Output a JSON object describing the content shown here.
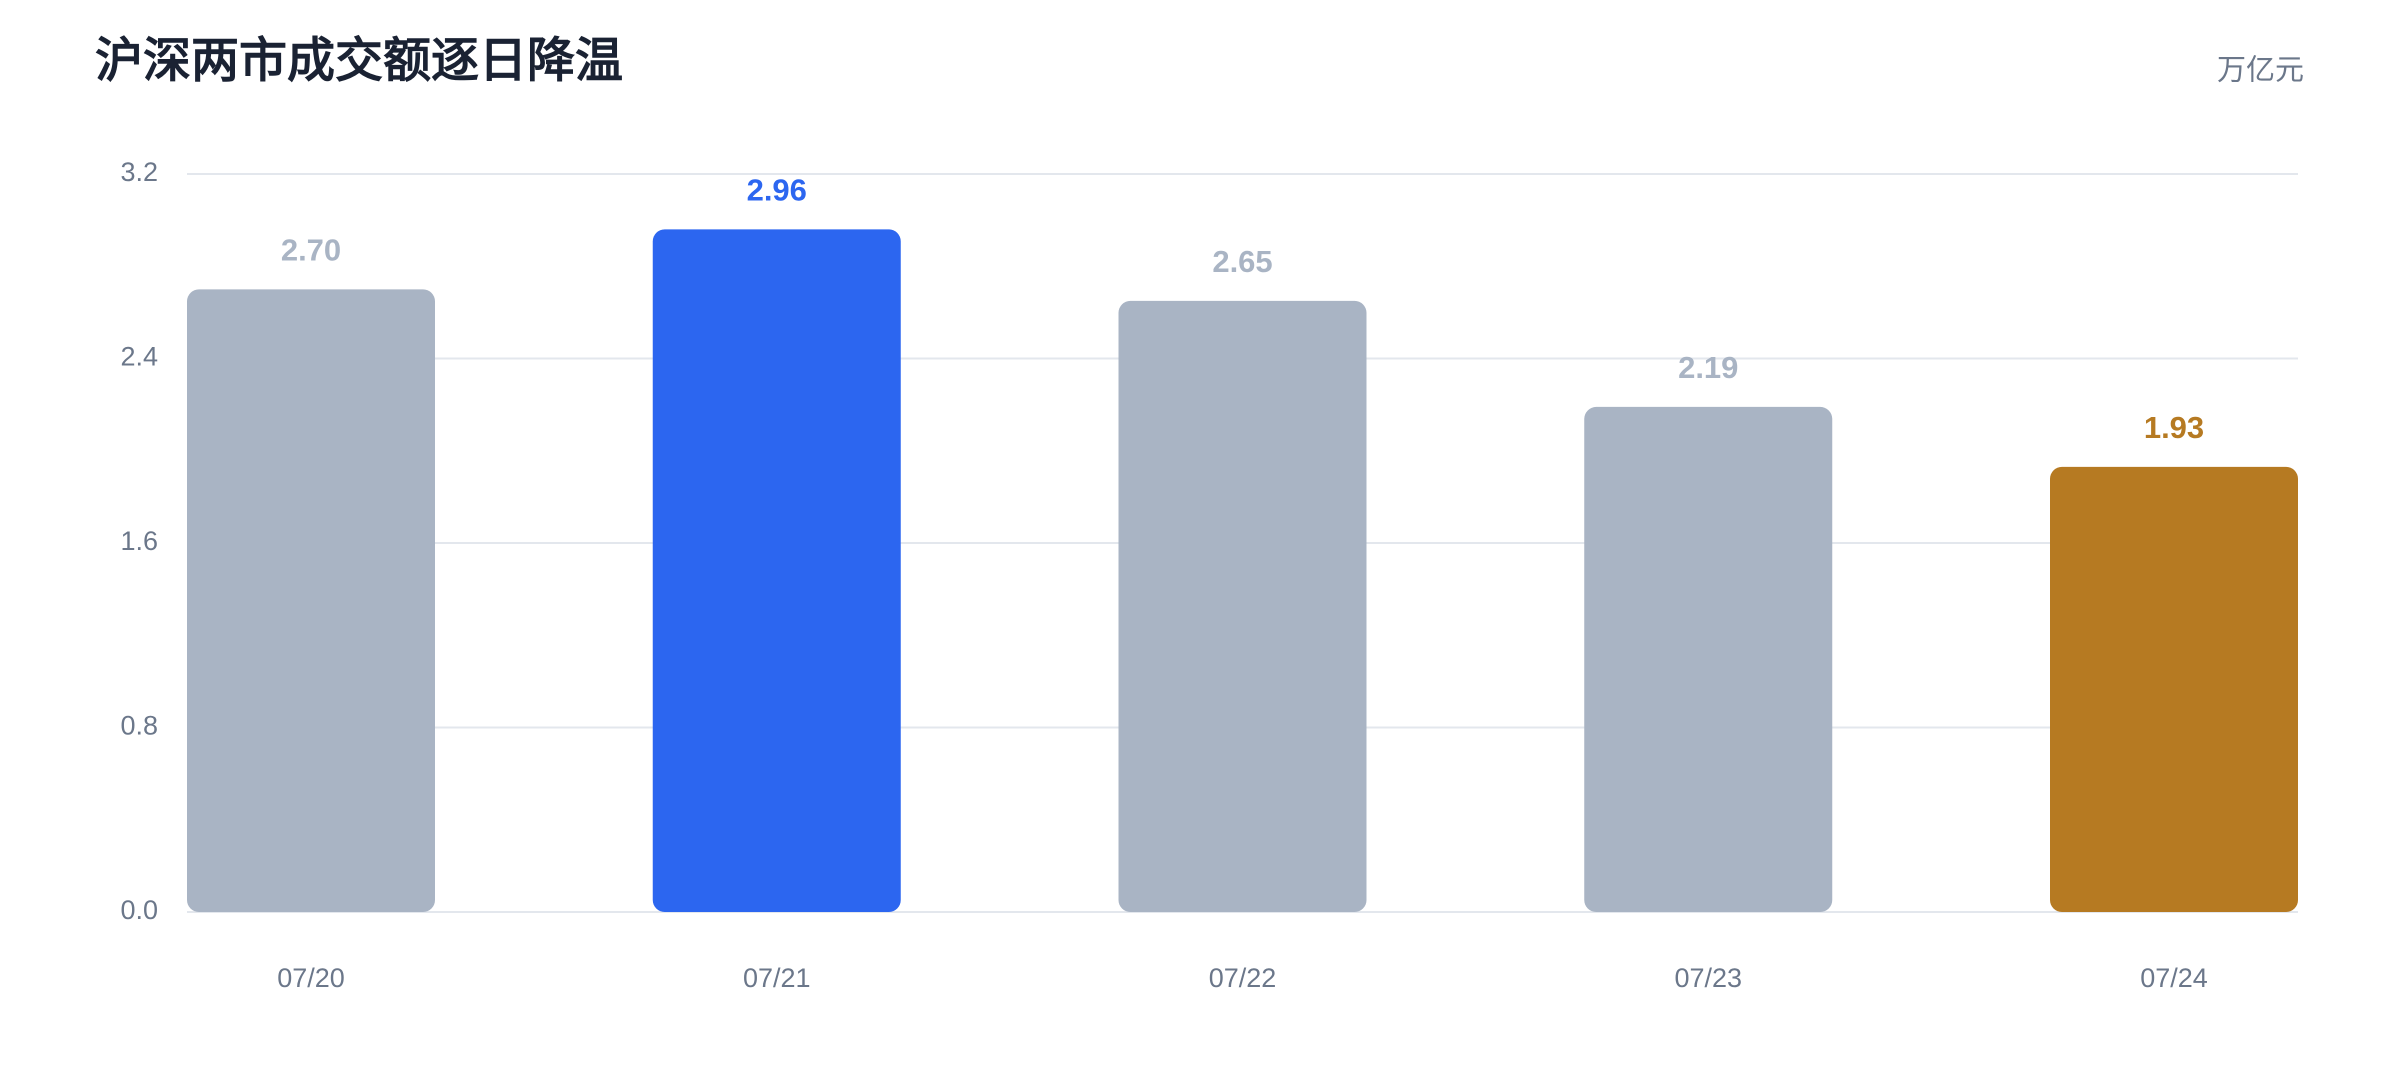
{
  "chart_data": {
    "type": "bar",
    "title": "沪深两市成交额逐日降温",
    "unit": "万亿元",
    "categories": [
      "07/20",
      "07/21",
      "07/22",
      "07/23",
      "07/24"
    ],
    "values": [
      2.7,
      2.96,
      2.65,
      2.19,
      1.93
    ],
    "value_labels": [
      "2.70",
      "2.96",
      "2.65",
      "2.19",
      "1.93"
    ],
    "colors": [
      "#a9b4c4",
      "#2c66f0",
      "#a9b4c4",
      "#a9b4c4",
      "#b67a22"
    ],
    "ylim": [
      0,
      3.2
    ],
    "yticks": [
      {
        "value": 0,
        "label": "0.0"
      },
      0.8,
      1.6,
      2.4,
      3.2
    ],
    "grid": true
  }
}
